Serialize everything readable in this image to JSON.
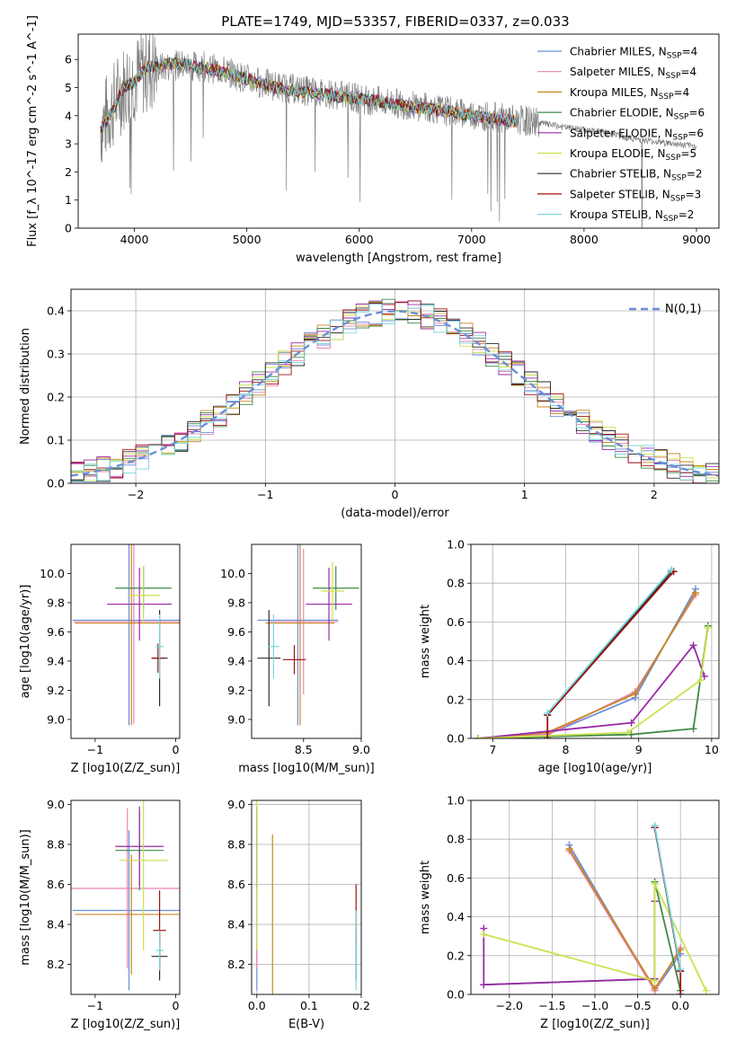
{
  "figure_title": "PLATE=1749, MJD=53357, FIBERID=0337, z=0.033",
  "colors": {
    "grid": "#b0b0b0",
    "observed": "#808080",
    "normal": "#6a8fd8",
    "models": [
      "#6a8fd8",
      "#e884b4",
      "#c8881e",
      "#3f8a44",
      "#9a2aa8",
      "#c9e24d",
      "#2b2b2b",
      "#a01010",
      "#78d6dc"
    ]
  },
  "legend_entries": [
    {
      "model": "Chabrier MILES",
      "nssp": "4"
    },
    {
      "model": "Salpeter MILES",
      "nssp": "4"
    },
    {
      "model": "Kroupa MILES",
      "nssp": "4"
    },
    {
      "model": "Chabrier ELODIE",
      "nssp": "6"
    },
    {
      "model": "Salpeter ELODIE",
      "nssp": "6"
    },
    {
      "model": "Kroupa ELODIE",
      "nssp": "5"
    },
    {
      "model": "Chabrier STELIB",
      "nssp": "2"
    },
    {
      "model": "Salpeter STELIB",
      "nssp": "3"
    },
    {
      "model": "Kroupa STELIB",
      "nssp": "2"
    }
  ],
  "chart_data": [
    {
      "id": "spectrum",
      "type": "line",
      "ylabel": "Flux [f_λ 10^-17 erg cm^-2 s^-1 A^-1]",
      "xlabel": "wavelength [Angstrom, rest frame]",
      "xlim": [
        3500,
        9200
      ],
      "ylim": [
        0,
        6.9
      ],
      "xticks": [
        4000,
        5000,
        6000,
        7000,
        8000,
        9000
      ],
      "yticks": [
        0,
        1,
        2,
        3,
        4,
        5,
        6
      ],
      "grid": false,
      "legend": "top-right",
      "series": [
        {
          "name": "observed",
          "x": [
            3700,
            3800,
            3900,
            4000,
            4100,
            4200,
            4400,
            4600,
            4800,
            5000,
            5200,
            5400,
            5600,
            5800,
            6000,
            6200,
            6400,
            6600,
            6800,
            7000,
            7200,
            7400,
            7600,
            7800,
            8000,
            8200,
            8400,
            8600,
            8800,
            9000
          ],
          "y": [
            3.6,
            4.3,
            5.0,
            5.3,
            5.6,
            5.7,
            5.8,
            5.75,
            5.6,
            5.3,
            5.1,
            4.95,
            4.85,
            4.75,
            4.6,
            4.5,
            4.4,
            4.3,
            4.15,
            4.05,
            3.95,
            3.85,
            3.75,
            3.6,
            3.5,
            3.4,
            3.2,
            3.1,
            3.0,
            2.9
          ]
        },
        {
          "name": "model",
          "x": [
            3700,
            3800,
            3900,
            4000,
            4100,
            4200,
            4400,
            4600,
            4800,
            5000,
            5200,
            5400,
            5600,
            5800,
            6000,
            6200,
            6400,
            6600,
            6800,
            7000,
            7200,
            7400
          ],
          "y": [
            3.5,
            4.1,
            5.0,
            5.2,
            5.7,
            5.8,
            5.85,
            5.7,
            5.55,
            5.3,
            5.05,
            4.9,
            4.8,
            4.7,
            4.6,
            4.5,
            4.35,
            4.25,
            4.15,
            4.0,
            3.9,
            3.8
          ]
        }
      ]
    },
    {
      "id": "residuals",
      "type": "line",
      "xlabel": "(data-model)/error",
      "ylabel": "Normed distribution",
      "xlim": [
        -2.5,
        2.5
      ],
      "ylim": [
        0,
        0.45
      ],
      "xticks": [
        -2,
        -1,
        0,
        1,
        2
      ],
      "yticks": [
        0.0,
        0.1,
        0.2,
        0.3,
        0.4
      ],
      "grid": true,
      "legend": "top-right",
      "legend_label": "N(0,1)",
      "series": [
        {
          "name": "N(0,1)",
          "x": [
            -2.5,
            -2.0,
            -1.5,
            -1.0,
            -0.5,
            0.0,
            0.5,
            1.0,
            1.5,
            2.0,
            2.5
          ],
          "y": [
            0.018,
            0.054,
            0.13,
            0.242,
            0.352,
            0.399,
            0.352,
            0.242,
            0.13,
            0.054,
            0.018
          ]
        }
      ]
    },
    {
      "id": "age_vs_Z",
      "type": "scatter",
      "xlabel": "Z [log10(Z/Z_sun)]",
      "ylabel": "age [log10(age/yr)]",
      "xlim": [
        -1.3,
        0.05
      ],
      "ylim": [
        8.87,
        10.2
      ],
      "xticks": [
        -1,
        0
      ],
      "yticks": [
        9.0,
        9.2,
        9.4,
        9.6,
        9.8,
        10.0
      ],
      "grid": false,
      "points": [
        {
          "x": -0.58,
          "y": 9.68,
          "xerr": 0.7,
          "yerr": 0.72
        },
        {
          "x": -0.52,
          "y": 9.67,
          "xerr": 0.75,
          "yerr": 0.7
        },
        {
          "x": -0.55,
          "y": 9.66,
          "xerr": 0.7,
          "yerr": 0.7
        },
        {
          "x": -0.4,
          "y": 9.9,
          "xerr": 0.35,
          "yerr": 0.15
        },
        {
          "x": -0.45,
          "y": 9.79,
          "xerr": 0.4,
          "yerr": 0.25
        },
        {
          "x": -0.4,
          "y": 9.85,
          "xerr": 0.2,
          "yerr": 0.2
        },
        {
          "x": -0.2,
          "y": 9.42,
          "xerr": 0.1,
          "yerr": 0.33
        },
        {
          "x": -0.22,
          "y": 9.42,
          "xerr": 0.08,
          "yerr": 0.1
        },
        {
          "x": -0.2,
          "y": 9.5,
          "xerr": 0.05,
          "yerr": 0.22
        }
      ]
    },
    {
      "id": "age_vs_mass",
      "type": "scatter",
      "xlabel": "mass [log10(M/M_sun)]",
      "ylabel": "",
      "xlim": [
        8.05,
        9.0
      ],
      "ylim": [
        8.87,
        10.2
      ],
      "xticks": [
        8.5,
        9.0
      ],
      "yticks": [
        9.0,
        9.2,
        9.4,
        9.6,
        9.8,
        10.0
      ],
      "grid": false,
      "points": [
        {
          "x": 8.45,
          "y": 9.68,
          "xerr": 0.35,
          "yerr": 0.72
        },
        {
          "x": 8.5,
          "y": 9.67,
          "xerr": 0.3,
          "yerr": 0.5
        },
        {
          "x": 8.47,
          "y": 9.66,
          "xerr": 0.3,
          "yerr": 0.7
        },
        {
          "x": 8.78,
          "y": 9.9,
          "xerr": 0.2,
          "yerr": 0.15
        },
        {
          "x": 8.72,
          "y": 9.79,
          "xerr": 0.2,
          "yerr": 0.25
        },
        {
          "x": 8.75,
          "y": 9.88,
          "xerr": 0.1,
          "yerr": 0.2
        },
        {
          "x": 8.2,
          "y": 9.42,
          "xerr": 0.1,
          "yerr": 0.33
        },
        {
          "x": 8.42,
          "y": 9.41,
          "xerr": 0.1,
          "yerr": 0.1
        },
        {
          "x": 8.24,
          "y": 9.5,
          "xerr": 0.05,
          "yerr": 0.22
        }
      ]
    },
    {
      "id": "weight_vs_age",
      "type": "line",
      "xlabel": "age [log10(age/yr)]",
      "ylabel": "mass weight",
      "xlim": [
        6.7,
        10.1
      ],
      "ylim": [
        0,
        1.0
      ],
      "xticks": [
        7,
        8,
        9,
        10
      ],
      "yticks": [
        0.0,
        0.2,
        0.4,
        0.6,
        0.8,
        1.0
      ],
      "grid": true,
      "series": [
        {
          "name": "Chabrier MILES",
          "x": [
            6.8,
            7.75,
            8.95,
            9.78
          ],
          "y": [
            0.0,
            0.02,
            0.21,
            0.77
          ]
        },
        {
          "name": "Salpeter MILES",
          "x": [
            6.8,
            7.75,
            8.95,
            9.78
          ],
          "y": [
            0.0,
            0.02,
            0.24,
            0.74
          ]
        },
        {
          "name": "Kroupa MILES",
          "x": [
            6.8,
            7.75,
            8.95,
            9.78
          ],
          "y": [
            0.0,
            0.03,
            0.23,
            0.75
          ]
        },
        {
          "name": "Chabrier ELODIE",
          "x": [
            6.8,
            8.9,
            9.75,
            9.95
          ],
          "y": [
            0.0,
            0.02,
            0.05,
            0.58
          ]
        },
        {
          "name": "Salpeter ELODIE",
          "x": [
            6.8,
            8.9,
            9.75,
            9.9
          ],
          "y": [
            0.0,
            0.08,
            0.48,
            0.32
          ]
        },
        {
          "name": "Kroupa ELODIE",
          "x": [
            6.8,
            8.85,
            9.85,
            9.95
          ],
          "y": [
            0.0,
            0.03,
            0.3,
            0.57
          ]
        },
        {
          "name": "Chabrier STELIB",
          "x": [
            7.75,
            9.45
          ],
          "y": [
            0.12,
            0.86
          ]
        },
        {
          "name": "Salpeter STELIB",
          "x": [
            7.75,
            7.75,
            9.48
          ],
          "y": [
            0.0,
            0.12,
            0.86
          ]
        },
        {
          "name": "Kroupa STELIB",
          "x": [
            7.75,
            9.45
          ],
          "y": [
            0.13,
            0.87
          ]
        }
      ]
    },
    {
      "id": "mass_vs_Z",
      "type": "scatter",
      "xlabel": "Z [log10(Z/Z_sun)]",
      "ylabel": "mass [log10(M/M_sun)]",
      "xlim": [
        -1.3,
        0.05
      ],
      "ylim": [
        8.05,
        9.02
      ],
      "xticks": [
        -1,
        0
      ],
      "yticks": [
        8.2,
        8.4,
        8.6,
        8.8,
        9.0
      ],
      "grid": false,
      "points": [
        {
          "x": -0.58,
          "y": 8.47,
          "xerr": 0.7,
          "yerr": 0.4
        },
        {
          "x": -0.6,
          "y": 8.58,
          "xerr": 0.7,
          "yerr": 0.4
        },
        {
          "x": -0.55,
          "y": 8.45,
          "xerr": 0.7,
          "yerr": 0.3
        },
        {
          "x": -0.45,
          "y": 8.77,
          "xerr": 0.3,
          "yerr": 0.2
        },
        {
          "x": -0.45,
          "y": 8.79,
          "xerr": 0.3,
          "yerr": 0.2
        },
        {
          "x": -0.4,
          "y": 8.72,
          "xerr": 0.3,
          "yerr": 0.45
        },
        {
          "x": -0.2,
          "y": 8.24,
          "xerr": 0.1,
          "yerr": 0.12
        },
        {
          "x": -0.2,
          "y": 8.37,
          "xerr": 0.08,
          "yerr": 0.2
        },
        {
          "x": -0.2,
          "y": 8.27,
          "xerr": 0.05,
          "yerr": 0.1
        }
      ]
    },
    {
      "id": "mass_vs_ebv",
      "type": "scatter",
      "xlabel": "E(B-V)",
      "ylabel": "",
      "xlim": [
        -0.01,
        0.2
      ],
      "ylim": [
        8.05,
        9.02
      ],
      "xticks": [
        0.0,
        0.1,
        0.2
      ],
      "yticks": [
        8.2,
        8.4,
        8.6,
        8.8,
        9.0
      ],
      "grid": true,
      "points": [
        {
          "x": 0.0,
          "y": 8.47,
          "xerr": 0,
          "yerr": 0.4
        },
        {
          "x": 0.0,
          "y": 8.58,
          "xerr": 0,
          "yerr": 0.4
        },
        {
          "x": 0.03,
          "y": 8.45,
          "xerr": 0,
          "yerr": 0.4
        },
        {
          "x": 0.0,
          "y": 8.77,
          "xerr": 0,
          "yerr": 0.2
        },
        {
          "x": 0.0,
          "y": 8.79,
          "xerr": 0,
          "yerr": 0.2
        },
        {
          "x": 0.0,
          "y": 8.72,
          "xerr": 0,
          "yerr": 0.45
        },
        {
          "x": 0.19,
          "y": 8.24,
          "xerr": 0,
          "yerr": 0.12
        },
        {
          "x": 0.19,
          "y": 8.45,
          "xerr": 0,
          "yerr": 0.15
        },
        {
          "x": 0.19,
          "y": 8.27,
          "xerr": 0,
          "yerr": 0.2
        }
      ]
    },
    {
      "id": "weight_vs_Z",
      "type": "line",
      "xlabel": "Z [log10(Z/Z_sun)]",
      "ylabel": "mass weight",
      "xlim": [
        -2.45,
        0.45
      ],
      "ylim": [
        0,
        1.0
      ],
      "xticks": [
        -2.0,
        -1.5,
        -1.0,
        -0.5,
        0.0
      ],
      "yticks": [
        0.0,
        0.2,
        0.4,
        0.6,
        0.8,
        1.0
      ],
      "grid": true,
      "series": [
        {
          "name": "Chabrier MILES",
          "x": [
            -1.3,
            -0.3,
            0.0
          ],
          "y": [
            0.77,
            0.02,
            0.21
          ]
        },
        {
          "name": "Salpeter MILES",
          "x": [
            -1.3,
            -0.3,
            0.0
          ],
          "y": [
            0.74,
            0.02,
            0.24
          ]
        },
        {
          "name": "Kroupa MILES",
          "x": [
            -1.3,
            -0.3,
            0.0
          ],
          "y": [
            0.75,
            0.03,
            0.23
          ]
        },
        {
          "name": "Chabrier ELODIE",
          "x": [
            -2.3,
            -0.3,
            -0.3,
            0.0
          ],
          "y": [
            0.05,
            0.08,
            0.58,
            0.02
          ]
        },
        {
          "name": "Salpeter ELODIE",
          "x": [
            -2.3,
            -2.3,
            -0.3,
            -0.3
          ],
          "y": [
            0.34,
            0.05,
            0.08,
            0.48
          ]
        },
        {
          "name": "Kroupa ELODIE",
          "x": [
            -2.3,
            -0.3,
            -0.3,
            0.3
          ],
          "y": [
            0.31,
            0.07,
            0.57,
            0.02
          ]
        },
        {
          "name": "Chabrier STELIB",
          "x": [
            -0.3,
            0.0
          ],
          "y": [
            0.86,
            0.12
          ]
        },
        {
          "name": "Salpeter STELIB",
          "x": [
            0.0,
            0.0,
            -0.3
          ],
          "y": [
            0.0,
            0.12,
            0.86
          ]
        },
        {
          "name": "Kroupa STELIB",
          "x": [
            -0.3,
            0.0
          ],
          "y": [
            0.87,
            0.13
          ]
        }
      ]
    }
  ]
}
